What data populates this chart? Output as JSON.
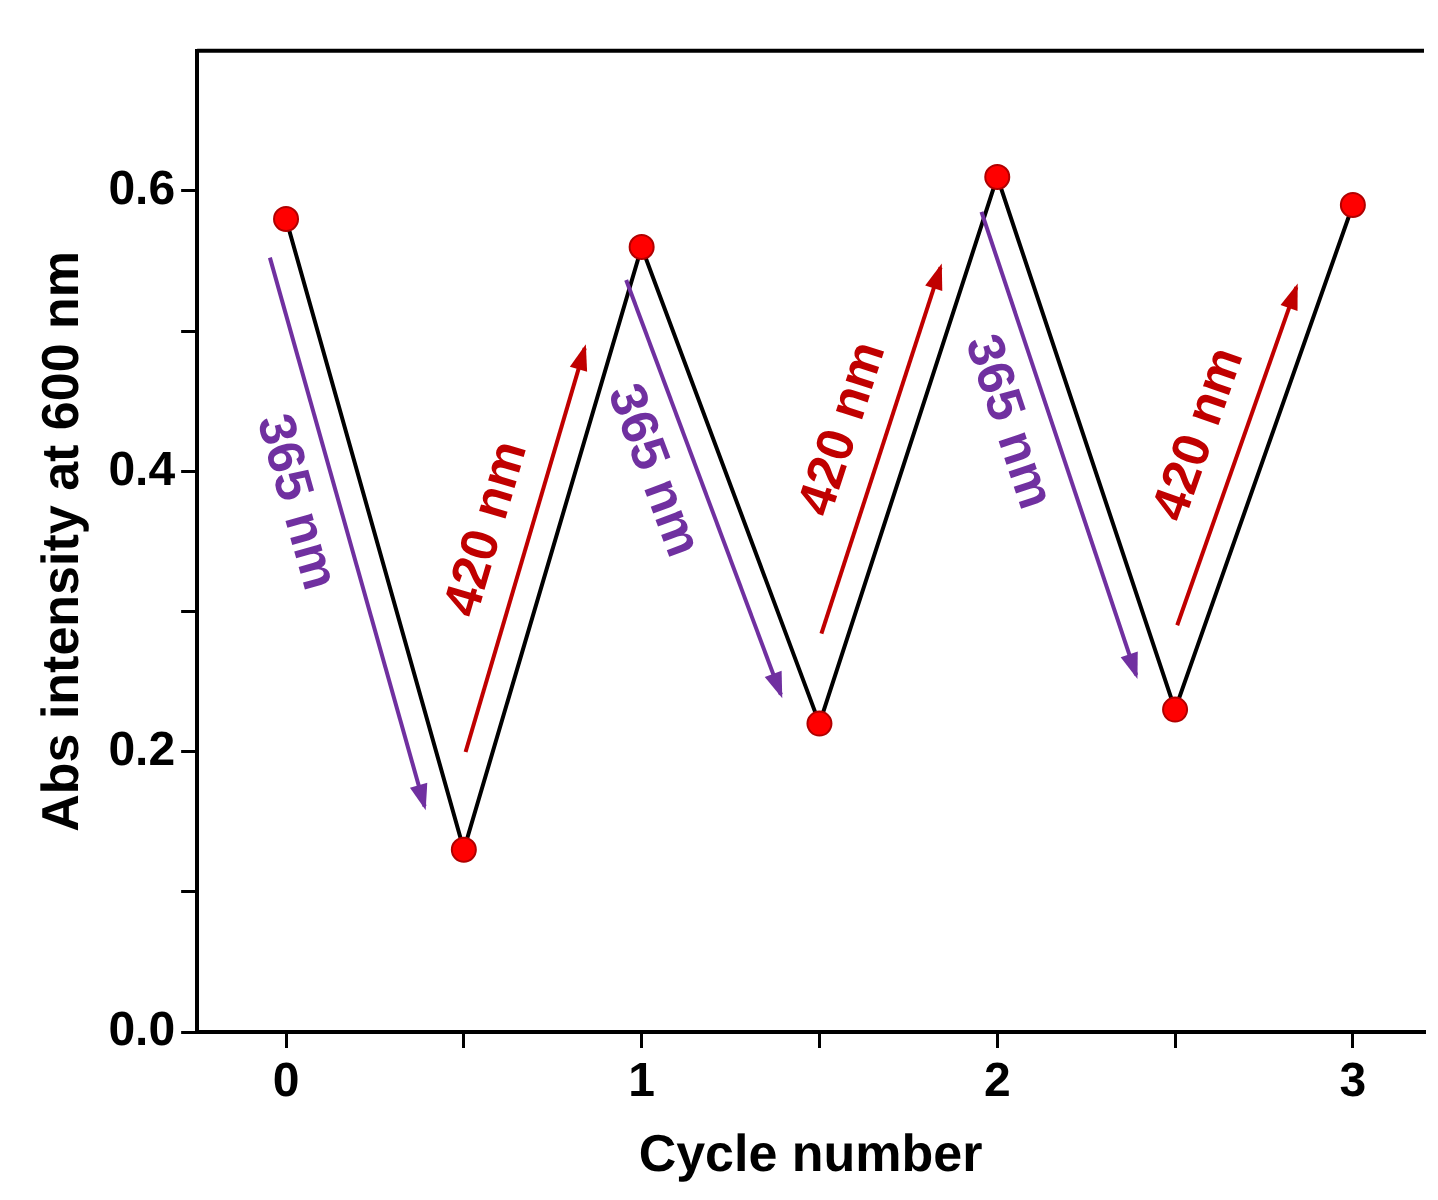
{
  "chart_data": {
    "type": "line",
    "xlabel": "Cycle number",
    "ylabel": "Abs intensity at 600 nm",
    "x": [
      0,
      0.5,
      1,
      1.5,
      2,
      2.5,
      3
    ],
    "series": [
      {
        "color": "#ff0000",
        "values": [
          0.58,
          0.13,
          0.56,
          0.22,
          0.61,
          0.23,
          0.59
        ]
      }
    ],
    "xlim": [
      -0.25,
      3.2
    ],
    "xticks": [
      0,
      {
        "value": 0.5,
        "label": null
      },
      1,
      {
        "value": 1.5,
        "label": null
      },
      2,
      {
        "value": 2.5,
        "label": null
      },
      3
    ],
    "ylim": [
      0,
      0.7
    ],
    "yticks": [
      {
        "value": 0,
        "label": "0.0"
      },
      {
        "value": 0.1,
        "label": null
      },
      0.2,
      {
        "value": 0.3,
        "label": null
      },
      0.4,
      {
        "value": 0.5,
        "label": null
      },
      0.6
    ],
    "grid": false,
    "legend": false,
    "marker": "circle",
    "line_style": "solid",
    "annotations": [
      "365 nm",
      "420 nm",
      "365 nm",
      "420 nm",
      "365 nm",
      "420 nm"
    ]
  }
}
